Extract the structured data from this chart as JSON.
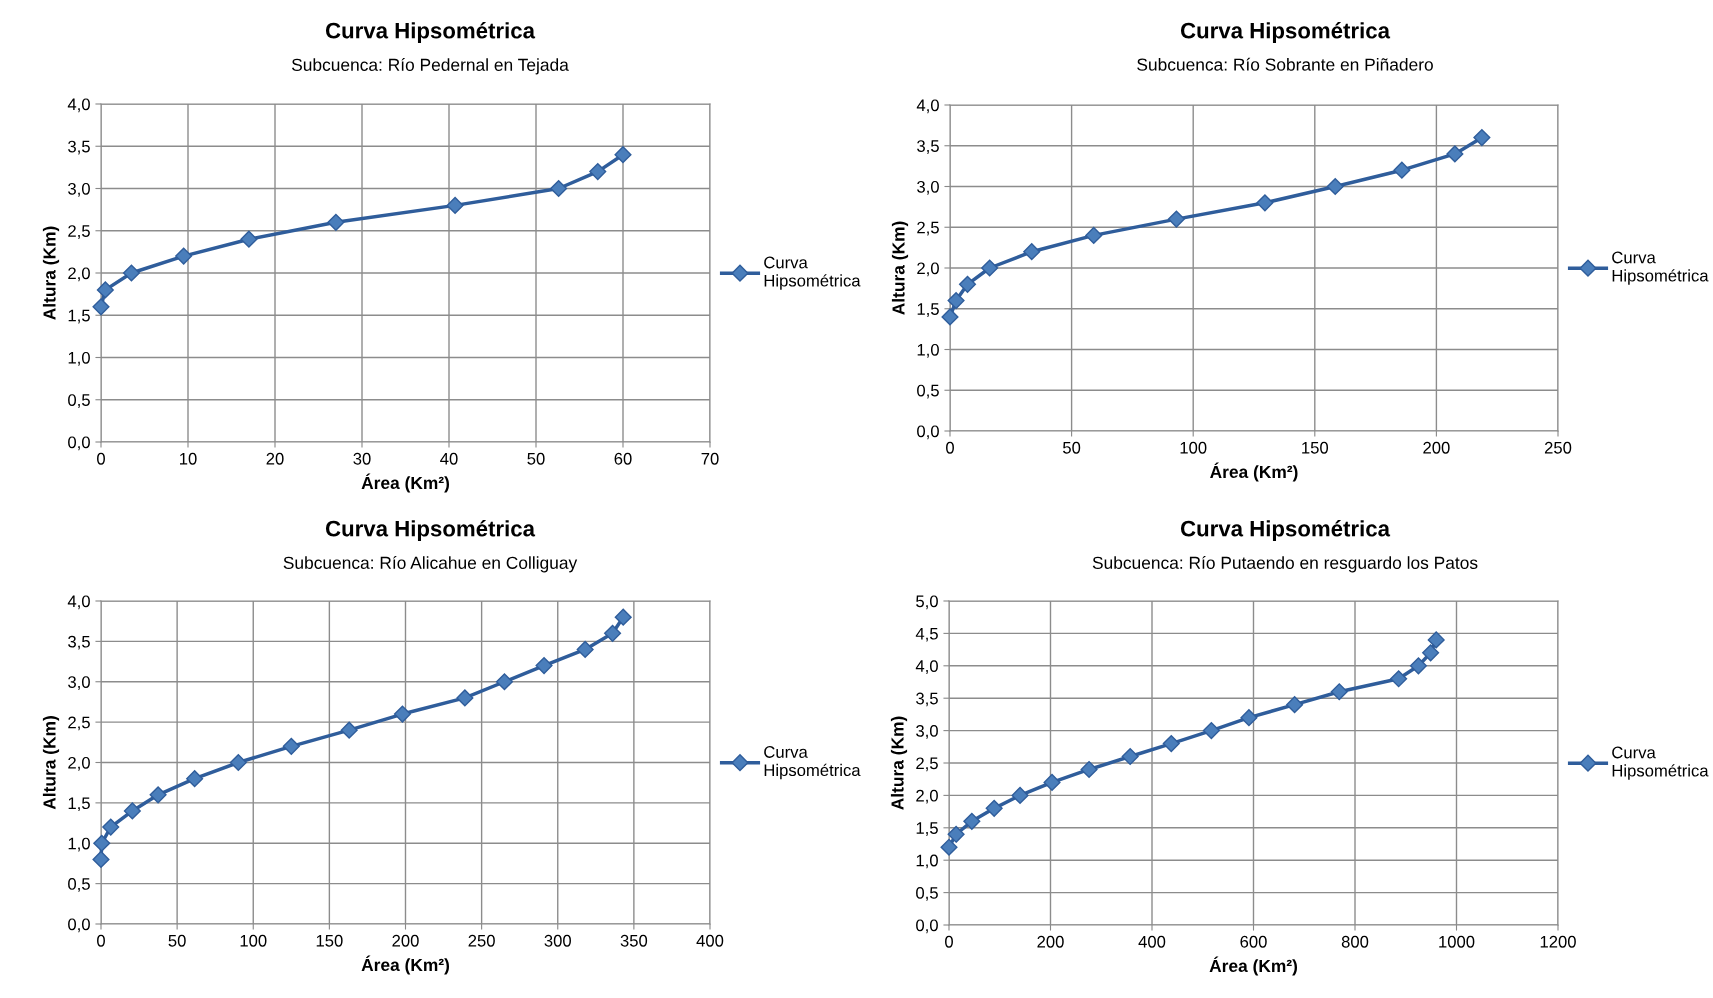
{
  "chart_data": [
    {
      "type": "line",
      "title": "Curva Hipsométrica",
      "subtitle": "Subcuenca: Río Pedernal en Tejada",
      "xlabel": "Área (Km²)",
      "ylabel": "Altura (Km)",
      "marker": "diamond",
      "grid": true,
      "legend": "right",
      "xlim": [
        0,
        70
      ],
      "xticks": [
        0,
        10,
        20,
        30,
        40,
        50,
        60,
        70
      ],
      "ylim": [
        0,
        4
      ],
      "yticks": [
        {
          "value": 0,
          "label": "0,0"
        },
        {
          "value": 0.5,
          "label": "0,5"
        },
        {
          "value": 1,
          "label": "1,0"
        },
        {
          "value": 1.5,
          "label": "1,5"
        },
        {
          "value": 2,
          "label": "2,0"
        },
        {
          "value": 2.5,
          "label": "2,5"
        },
        {
          "value": 3,
          "label": "3,0"
        },
        {
          "value": 3.5,
          "label": "3,5"
        },
        {
          "value": 4,
          "label": "4,0"
        }
      ],
      "series": [
        {
          "name": "Curva Hipsométrica",
          "color": "#2f5d9b",
          "x": [
            0,
            0.5,
            3.5,
            9.5,
            17,
            27,
            40.7,
            52.6,
            57.1,
            60
          ],
          "values": [
            1.6,
            1.8,
            2.0,
            2.2,
            2.4,
            2.6,
            2.8,
            3.0,
            3.2,
            3.4
          ]
        }
      ]
    },
    {
      "type": "line",
      "title": "Curva Hipsométrica",
      "subtitle": "Subcuenca: Río Sobrante en Piñadero",
      "xlabel": "Área (Km²)",
      "ylabel": "Altura (Km)",
      "marker": "diamond",
      "grid": true,
      "legend": "right",
      "xlim": [
        0,
        250
      ],
      "xticks": [
        0,
        50,
        100,
        150,
        200,
        250
      ],
      "ylim": [
        0,
        4
      ],
      "yticks": [
        {
          "value": 0,
          "label": "0,0"
        },
        {
          "value": 0.5,
          "label": "0,5"
        },
        {
          "value": 1,
          "label": "1,0"
        },
        {
          "value": 1.5,
          "label": "1,5"
        },
        {
          "value": 2,
          "label": "2,0"
        },
        {
          "value": 2.5,
          "label": "2,5"
        },
        {
          "value": 3,
          "label": "3,0"
        },
        {
          "value": 3.5,
          "label": "3,5"
        },
        {
          "value": 4,
          "label": "4,0"
        }
      ],
      "series": [
        {
          "name": "Curva Hipsométrica",
          "color": "#2f5d9b",
          "x": [
            0,
            2.5,
            7.2,
            16.3,
            33.6,
            59.1,
            93.1,
            129.5,
            158.4,
            185.8,
            207.6,
            218.7
          ],
          "values": [
            1.4,
            1.6,
            1.8,
            2.0,
            2.2,
            2.4,
            2.6,
            2.8,
            3.0,
            3.2,
            3.4,
            3.6
          ]
        }
      ]
    },
    {
      "type": "line",
      "title": "Curva Hipsométrica",
      "subtitle": "Subcuenca: Río Alicahue en Colliguay",
      "xlabel": "Área (Km²)",
      "ylabel": "Altura (Km)",
      "marker": "diamond",
      "grid": true,
      "legend": "right",
      "xlim": [
        0,
        400
      ],
      "xticks": [
        0,
        50,
        100,
        150,
        200,
        250,
        300,
        350,
        400
      ],
      "ylim": [
        0,
        4
      ],
      "yticks": [
        {
          "value": 0,
          "label": "0,0"
        },
        {
          "value": 0.5,
          "label": "0,5"
        },
        {
          "value": 1,
          "label": "1,0"
        },
        {
          "value": 1.5,
          "label": "1,5"
        },
        {
          "value": 2,
          "label": "2,0"
        },
        {
          "value": 2.5,
          "label": "2,5"
        },
        {
          "value": 3,
          "label": "3,0"
        },
        {
          "value": 3.5,
          "label": "3,5"
        },
        {
          "value": 4,
          "label": "4,0"
        }
      ],
      "series": [
        {
          "name": "Curva Hipsométrica",
          "color": "#2f5d9b",
          "x": [
            0,
            0.5,
            6.4,
            20.6,
            37.5,
            61.5,
            90.2,
            125,
            163,
            198,
            239,
            265,
            291,
            318,
            336,
            343
          ],
          "values": [
            0.8,
            1.0,
            1.2,
            1.4,
            1.6,
            1.8,
            2.0,
            2.2,
            2.4,
            2.6,
            2.8,
            3.0,
            3.2,
            3.4,
            3.6,
            3.8
          ]
        }
      ]
    },
    {
      "type": "line",
      "title": "Curva Hipsométrica",
      "subtitle": "Subcuenca: Río Putaendo en resguardo los Patos",
      "xlabel": "Área (Km²)",
      "ylabel": "Altura (Km)",
      "marker": "diamond",
      "grid": true,
      "legend": "right",
      "xlim": [
        0,
        1200
      ],
      "xticks": [
        0,
        200,
        400,
        600,
        800,
        1000,
        1200
      ],
      "ylim": [
        0,
        5
      ],
      "yticks": [
        {
          "value": 0,
          "label": "0,0"
        },
        {
          "value": 0.5,
          "label": "0,5"
        },
        {
          "value": 1,
          "label": "1,0"
        },
        {
          "value": 1.5,
          "label": "1,5"
        },
        {
          "value": 2,
          "label": "2,0"
        },
        {
          "value": 2.5,
          "label": "2,5"
        },
        {
          "value": 3,
          "label": "3,0"
        },
        {
          "value": 3.5,
          "label": "3,5"
        },
        {
          "value": 4,
          "label": "4,0"
        },
        {
          "value": 4.5,
          "label": "4,5"
        },
        {
          "value": 5,
          "label": "5,0"
        }
      ],
      "series": [
        {
          "name": "Curva Hipsométrica",
          "color": "#2f5d9b",
          "x": [
            0,
            14,
            45,
            89,
            140,
            203,
            276,
            357,
            438,
            517,
            591,
            681,
            769,
            886,
            925,
            949,
            960
          ],
          "values": [
            1.2,
            1.4,
            1.6,
            1.8,
            2.0,
            2.2,
            2.4,
            2.6,
            2.8,
            3.0,
            3.2,
            3.4,
            3.6,
            3.8,
            4.0,
            4.2,
            4.4
          ]
        }
      ]
    }
  ]
}
